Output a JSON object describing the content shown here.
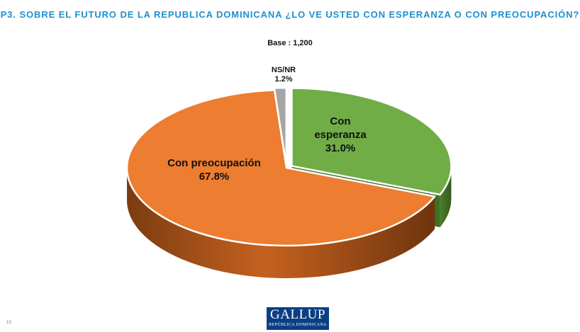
{
  "header": {
    "title": "P3. SOBRE EL FUTURO DE LA REPUBLICA DOMINICANA ¿LO VE USTED CON ESPERANZA O CON PREOCUPACIÓN?",
    "base": "Base : 1,200"
  },
  "chart_data": {
    "type": "pie",
    "title": "P3. SOBRE EL FUTURO DE LA REPUBLICA DOMINICANA ¿LO VE USTED CON ESPERANZA O CON PREOCUPACIÓN?",
    "subtitle": "Base : 1,200",
    "style": "3d-exploded",
    "legend": "none",
    "slices": [
      {
        "label": "Con esperanza",
        "label_lines": [
          "Con",
          "esperanza"
        ],
        "value": 31.0,
        "value_text": "31.0%",
        "color": "#70ad47",
        "side_color": "#3f6e26"
      },
      {
        "label": "Con preocupación",
        "label_lines": [
          "Con preocupación"
        ],
        "value": 67.8,
        "value_text": "67.8%",
        "color": "#ed7d31",
        "side_color": "#8a4414"
      },
      {
        "label": "NS/NR",
        "label_lines": [
          "NS/NR"
        ],
        "value": 1.2,
        "value_text": "1.2%",
        "color": "#a5a5a5",
        "side_color": "#5e5e5e"
      }
    ]
  },
  "footer": {
    "logo_word": "GALLUP",
    "logo_sub": "REPÚBLICA DOMINICANA",
    "page_number": "13"
  }
}
